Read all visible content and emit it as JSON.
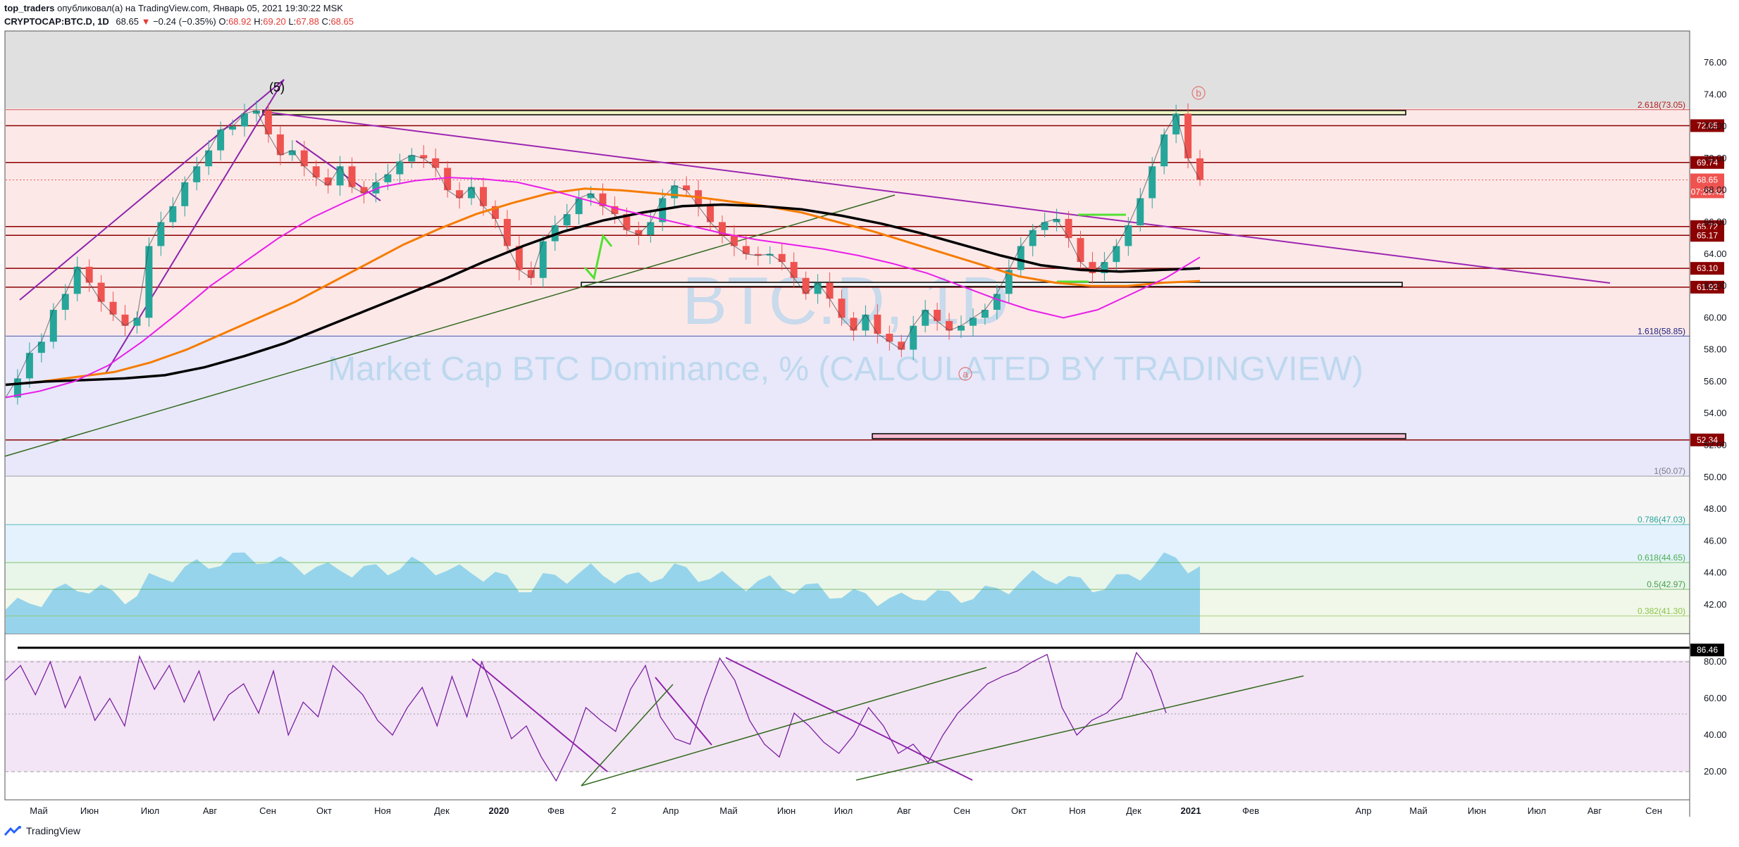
{
  "header": {
    "author": "top_traders",
    "published_text": "опубликовал(а) на TradingView.com, Январь 05, 2021 19:30:22 MSK",
    "symbol": "CRYPTOCAP:BTC.D, 1D",
    "last": "68.65",
    "change": "−0.24 (−0.35%)",
    "o_label": "O:",
    "o": "68.92",
    "h_label": "H:",
    "h": "69.20",
    "l_label": "L:",
    "l": "67.88",
    "c_label": "C:",
    "c": "68.65"
  },
  "watermark": {
    "symbol": "BTC.D, 1D",
    "description": "Market Cap BTC Dominance, % (CALCULATED BY TRADINGVIEW)"
  },
  "footer": {
    "brand": "TradingView"
  },
  "colors": {
    "price_badge": "#8b0000",
    "last_price_badge": "#ef5350",
    "ma_orange": "#f57c00",
    "ma_black": "#000000",
    "ma_magenta": "#e91ee9",
    "trend_purple": "#9c27b0",
    "trend_green": "#33691e",
    "volume": "#87ceeb",
    "rsi_line": "#7b1fa2"
  },
  "chart_data": [
    {
      "type": "line",
      "title": "Market Cap BTC Dominance, % (CALCULATED BY TRADINGVIEW)",
      "xlabel": "",
      "ylabel": "",
      "x_ticks": [
        "Май",
        "Июн",
        "Июл",
        "Авг",
        "Сен",
        "Окт",
        "Ноя",
        "Дек",
        "2020",
        "Фев",
        "2",
        "Апр",
        "Май",
        "Июн",
        "Июл",
        "Авг",
        "Сен",
        "Окт",
        "Ноя",
        "Дек",
        "2021",
        "Фев",
        "Апр",
        "Май",
        "Июн",
        "Июл",
        "Авг",
        "Сен"
      ],
      "y_ticks": [
        "76.00",
        "74.00",
        "72.00",
        "70.00",
        "68.00",
        "66.00",
        "64.00",
        "62.00",
        "60.00",
        "58.00",
        "56.00",
        "54.00",
        "52.00",
        "50.00",
        "48.00",
        "46.00",
        "44.00",
        "42.00"
      ],
      "ylim": [
        40.2,
        77.8
      ],
      "series": [
        {
          "values": [
            55.0,
            56.2,
            57.8,
            58.5,
            60.5,
            61.5,
            63.2,
            62.2,
            61.0,
            60.2,
            59.5,
            60.0,
            64.5,
            66.0,
            67.0,
            68.5,
            69.5,
            70.5,
            71.8,
            72.0,
            72.8,
            73.0,
            71.5,
            70.2,
            70.5,
            69.5,
            68.8,
            68.3,
            69.5,
            68.2,
            67.8,
            68.5,
            69.0,
            69.8,
            70.2,
            70.0,
            69.4,
            68.0,
            67.5,
            68.2,
            67.0,
            66.2,
            64.5,
            63.0,
            62.5,
            64.8,
            65.8,
            66.5,
            67.5,
            67.8,
            67.0,
            66.5,
            65.5,
            65.2,
            66.0,
            67.5,
            68.3,
            68.0,
            67.0,
            66.0,
            65.2,
            64.5,
            64.0,
            63.9,
            64.0,
            63.5,
            62.5,
            61.5,
            62.2,
            61.2,
            60.0,
            59.2,
            60.2,
            59.0,
            58.5,
            58.0,
            59.5,
            60.5,
            59.8,
            59.2,
            59.5,
            60.0,
            60.5,
            61.5,
            63.0,
            64.5,
            65.5,
            66.0,
            66.2,
            65.0,
            63.5,
            62.8,
            63.5,
            64.5,
            65.8,
            67.5,
            69.5,
            71.5,
            72.8,
            70.0,
            68.65
          ]
        },
        {
          "name": "MA orange",
          "values": [
            55.8,
            56.0,
            56.3,
            56.6,
            57.2,
            58.0,
            59.0,
            60.0,
            61.0,
            62.2,
            63.4,
            64.6,
            65.6,
            66.5,
            67.2,
            67.8,
            68.1,
            68.0,
            67.8,
            67.6,
            67.3,
            67.0,
            66.6,
            66.0,
            65.4,
            64.7,
            64.0,
            63.3,
            62.6,
            62.2,
            62.0,
            62.0,
            62.2,
            62.3
          ]
        },
        {
          "name": "MA black",
          "values": [
            55.8,
            56.0,
            56.1,
            56.2,
            56.4,
            56.9,
            57.6,
            58.4,
            59.4,
            60.4,
            61.4,
            62.4,
            63.5,
            64.5,
            65.4,
            66.1,
            66.6,
            67.0,
            67.1,
            67.0,
            66.8,
            66.4,
            65.9,
            65.3,
            64.6,
            63.9,
            63.3,
            63.0,
            62.9,
            63.0,
            63.1
          ]
        },
        {
          "name": "MA magenta",
          "values": [
            55.0,
            55.4,
            56.0,
            57.0,
            58.5,
            60.2,
            62.0,
            63.5,
            65.0,
            66.3,
            67.3,
            68.2,
            68.6,
            68.8,
            68.7,
            68.5,
            68.0,
            67.4,
            66.8,
            66.3,
            65.8,
            65.3,
            64.9,
            64.6,
            64.3,
            63.9,
            63.4,
            62.8,
            62.0,
            61.2,
            60.5,
            60.0,
            60.5,
            61.5,
            62.5,
            63.8
          ]
        }
      ],
      "horizontal_levels": [
        {
          "label": "72.05",
          "value": 72.05
        },
        {
          "label": "69.74",
          "value": 69.74
        },
        {
          "label": "68.65",
          "value": 68.65
        },
        {
          "label": "07:29:42",
          "value": 67.9
        },
        {
          "label": "65.72",
          "value": 65.72
        },
        {
          "label": "65.17",
          "value": 65.17
        },
        {
          "label": "63.10",
          "value": 63.1
        },
        {
          "label": "61.92",
          "value": 61.92
        },
        {
          "label": "52.34",
          "value": 52.34
        }
      ],
      "fib_levels": [
        {
          "label": "2.618(73.05)",
          "value": 73.05,
          "color": "#b71c1c"
        },
        {
          "label": "1.618(58.85)",
          "value": 58.85,
          "color": "#1a237e"
        },
        {
          "label": "1(50.07)",
          "value": 50.07,
          "color": "#787b86"
        },
        {
          "label": "0.786(47.03)",
          "value": 47.03,
          "color": "#26a69a"
        },
        {
          "label": "0.618(44.65)",
          "value": 44.65,
          "color": "#4caf50"
        },
        {
          "label": "0.5(42.97)",
          "value": 42.97,
          "color": "#43a047"
        },
        {
          "label": "0.382(41.30)",
          "value": 41.3,
          "color": "#8bc34a"
        }
      ],
      "annotations": [
        "(5)",
        "b",
        "a"
      ]
    },
    {
      "type": "line",
      "title": "",
      "y_ticks": [
        "80.00",
        "60.00",
        "40.00",
        "20.00"
      ],
      "ylim": [
        9,
        91
      ],
      "horizontal_levels": [
        {
          "label": "86.46",
          "value": 86.46
        }
      ],
      "series": [
        {
          "values": [
            70,
            78,
            62,
            80,
            55,
            72,
            48,
            60,
            45,
            83,
            65,
            78,
            58,
            75,
            48,
            62,
            68,
            52,
            75,
            40,
            58,
            50,
            78,
            70,
            62,
            48,
            40,
            55,
            66,
            45,
            72,
            50,
            80,
            60,
            38,
            45,
            28,
            15,
            32,
            55,
            48,
            42,
            65,
            78,
            50,
            38,
            35,
            60,
            82,
            70,
            48,
            35,
            28,
            52,
            45,
            36,
            30,
            40,
            55,
            45,
            30,
            35,
            25,
            40,
            52,
            60,
            68,
            72,
            75,
            80,
            84,
            55,
            40,
            48,
            52,
            60,
            85,
            75,
            52
          ]
        }
      ]
    }
  ]
}
